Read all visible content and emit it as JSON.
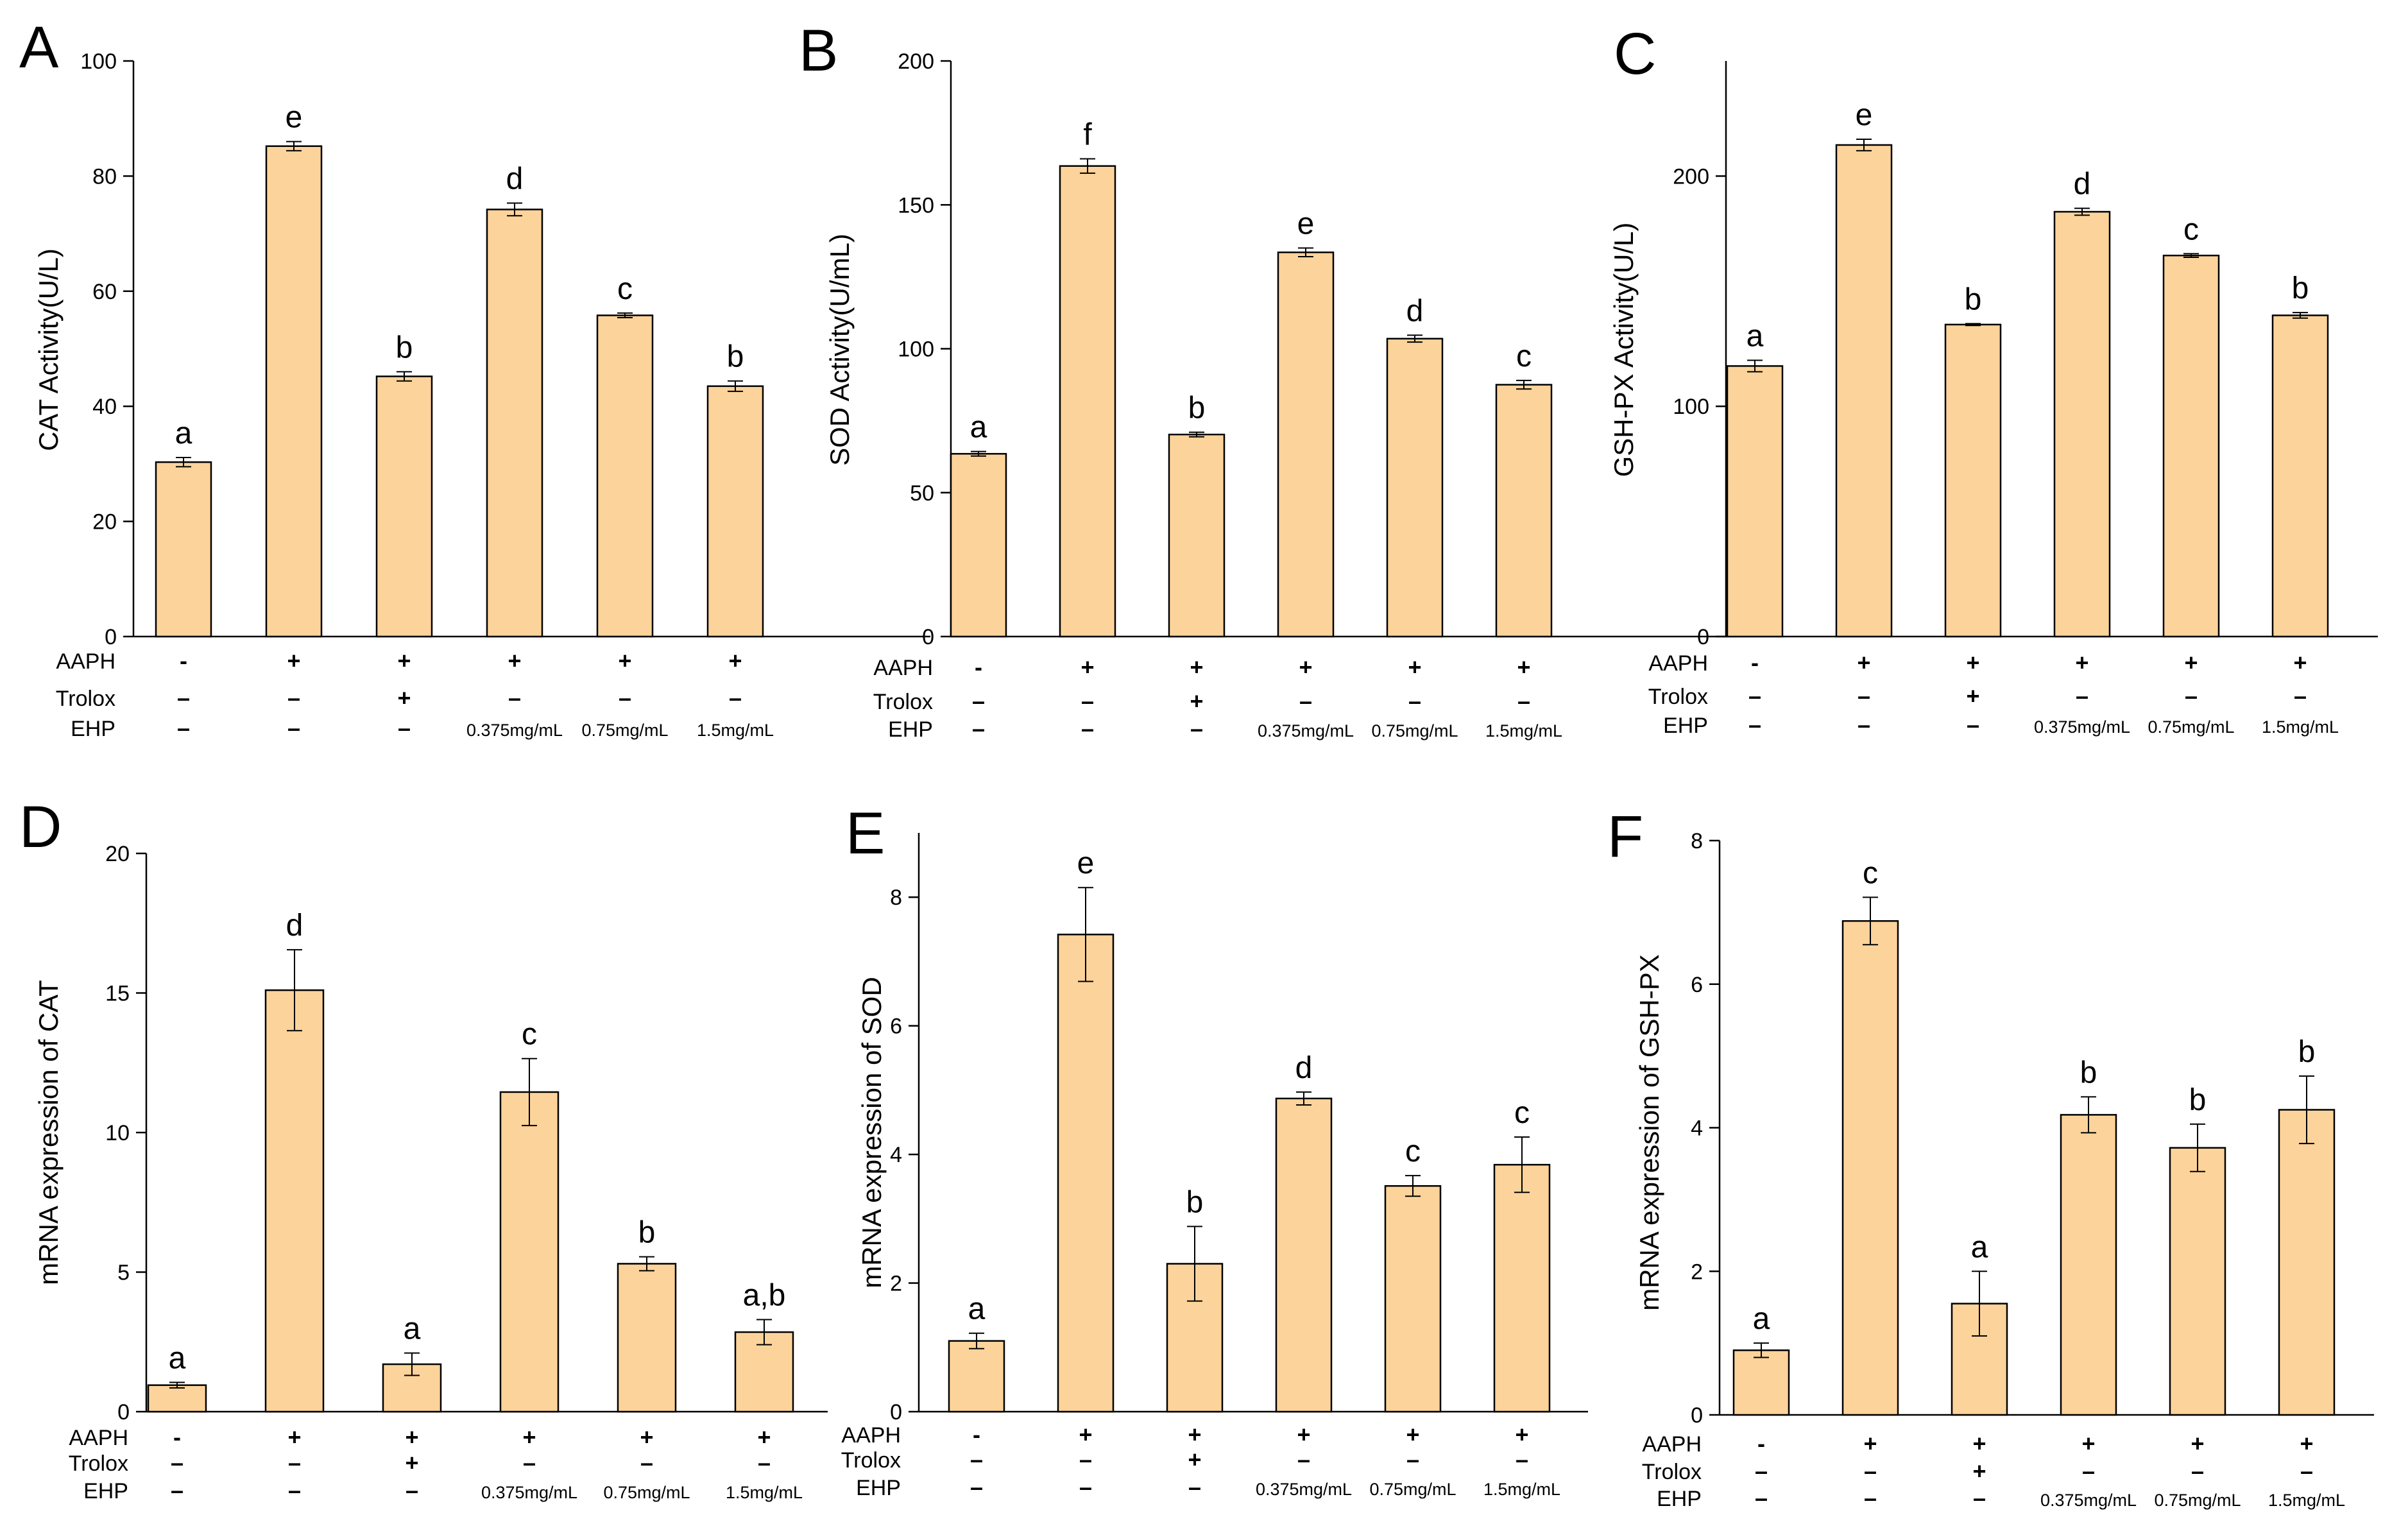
{
  "figure": {
    "bar_color": "#FCD39A",
    "edge_color": "#000000",
    "row_labels": [
      "AAPH",
      "Trolox",
      "EHP"
    ],
    "conditions": [
      [
        "-",
        "–",
        "–"
      ],
      [
        "+",
        "–",
        "–"
      ],
      [
        "+",
        "+",
        "–"
      ],
      [
        "+",
        "–",
        "0.375mg/mL"
      ],
      [
        "+",
        "–",
        "0.75mg/mL"
      ],
      [
        "+",
        "–",
        "1.5mg/mL"
      ]
    ]
  },
  "chart_data": [
    {
      "panel": "A",
      "type": "bar",
      "ylabel": "CAT Activity(U/L)",
      "ylim": [
        0,
        100
      ],
      "yticks": [
        0,
        20,
        40,
        60,
        80,
        100
      ],
      "values": [
        30.3,
        85.2,
        45.2,
        74.2,
        55.8,
        43.5
      ],
      "errors": [
        0.8,
        0.8,
        0.8,
        1.1,
        0.4,
        0.9
      ],
      "letters": [
        "a",
        "e",
        "b",
        "d",
        "c",
        "b"
      ]
    },
    {
      "panel": "B",
      "type": "bar",
      "ylabel": "SOD Activity(U/mL)",
      "ylim": [
        0,
        200
      ],
      "yticks": [
        0,
        50,
        100,
        150,
        200
      ],
      "values": [
        63.5,
        163.5,
        70.2,
        133.5,
        103.5,
        87.5
      ],
      "errors": [
        0.8,
        2.5,
        0.8,
        1.5,
        1.2,
        1.5
      ],
      "letters": [
        "a",
        "f",
        "b",
        "e",
        "d",
        "c"
      ]
    },
    {
      "panel": "C",
      "type": "bar",
      "ylabel": "GSH-PX Activity(U/L)",
      "ylim": [
        0,
        250
      ],
      "yticks": [
        0,
        100,
        200
      ],
      "values": [
        117.5,
        213.5,
        135.5,
        184.5,
        165.5,
        139.5
      ],
      "errors": [
        2.5,
        2.5,
        0.4,
        1.5,
        0.8,
        1.2
      ],
      "letters": [
        "a",
        "e",
        "b",
        "d",
        "c",
        "b"
      ]
    },
    {
      "panel": "D",
      "type": "bar",
      "ylabel": "mRNA expression of CAT",
      "ylim": [
        0,
        20
      ],
      "yticks": [
        0,
        5,
        10,
        15,
        20
      ],
      "values": [
        0.95,
        15.1,
        1.7,
        11.45,
        5.3,
        2.85
      ],
      "errors": [
        0.1,
        1.45,
        0.4,
        1.2,
        0.25,
        0.45
      ],
      "letters": [
        "a",
        "d",
        "a",
        "c",
        "b",
        "a,b"
      ]
    },
    {
      "panel": "E",
      "type": "bar",
      "ylabel": "mRNA expression of SOD",
      "ylim": [
        0,
        9
      ],
      "yticks": [
        0,
        2,
        4,
        6,
        8
      ],
      "values": [
        1.1,
        7.42,
        2.3,
        4.87,
        3.51,
        3.84
      ],
      "errors": [
        0.12,
        0.73,
        0.58,
        0.1,
        0.16,
        0.43
      ],
      "letters": [
        "a",
        "e",
        "b",
        "d",
        "c",
        "c"
      ]
    },
    {
      "panel": "F",
      "type": "bar",
      "ylabel": "mRNA expression of GSH-PX",
      "ylim": [
        0,
        8
      ],
      "yticks": [
        0,
        2,
        4,
        6,
        8
      ],
      "values": [
        0.9,
        6.88,
        1.55,
        4.18,
        3.72,
        4.25
      ],
      "errors": [
        0.1,
        0.33,
        0.45,
        0.25,
        0.33,
        0.47
      ],
      "letters": [
        "a",
        "c",
        "a",
        "b",
        "b",
        "b"
      ]
    }
  ]
}
